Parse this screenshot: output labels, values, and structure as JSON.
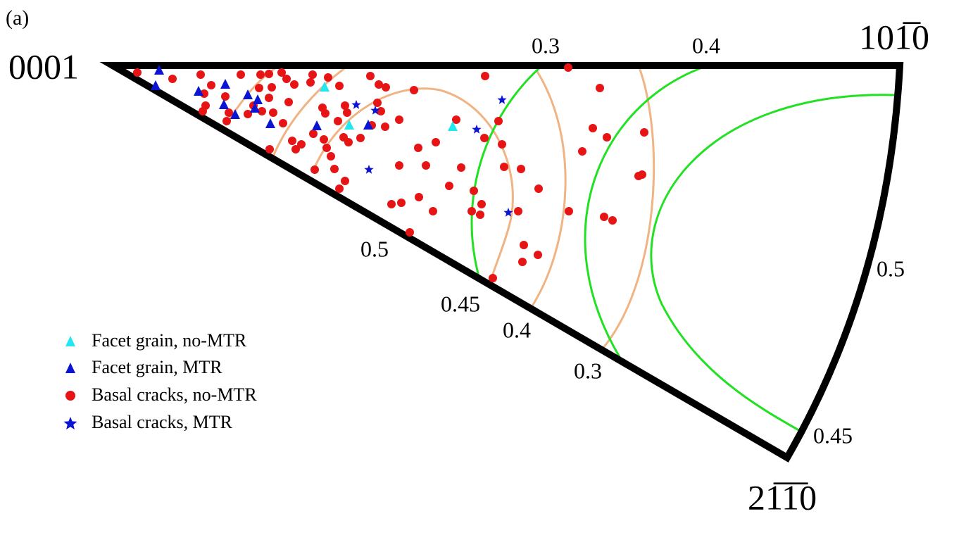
{
  "panel_label": "(a)",
  "corners": {
    "left": "0001",
    "right": "101̅0",
    "bottom": "21̅1̅0"
  },
  "contour_labels": {
    "top_green": "0.3",
    "top_green_2": "0.4",
    "edge_orange": "0.5",
    "edge_green": "0.45",
    "edge_orange_2": "0.4",
    "edge_orange_3": "0.3",
    "arc_1": "0.5",
    "arc_2": "0.45"
  },
  "legend": [
    "Facet grain, no-MTR",
    "Facet grain, MTR",
    "Basal cracks, no-MTR",
    "Basal cracks, MTR"
  ]
}
